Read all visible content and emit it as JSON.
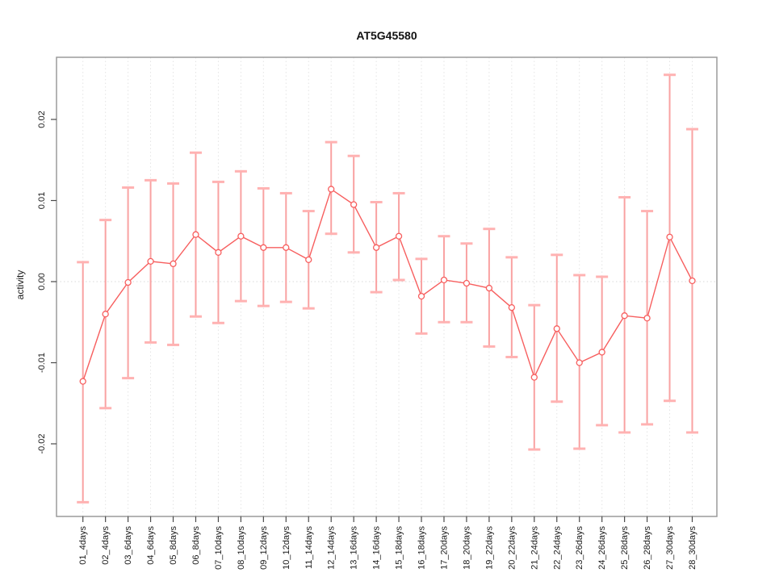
{
  "chart_data": {
    "type": "scatter",
    "title": "AT5G45580",
    "xlabel": "",
    "ylabel": "activity",
    "categories": [
      "01_4days",
      "02_4days",
      "03_6days",
      "04_6days",
      "05_8days",
      "06_8days",
      "07_10days",
      "08_10days",
      "09_12days",
      "10_12days",
      "11_14days",
      "12_14days",
      "13_16days",
      "14_16days",
      "15_18days",
      "16_18days",
      "17_20days",
      "18_20days",
      "19_22days",
      "20_22days",
      "21_24days",
      "22_24days",
      "23_26days",
      "24_26days",
      "25_28days",
      "26_28days",
      "27_30days",
      "28_30days"
    ],
    "series": [
      {
        "name": "activity",
        "values": [
          -0.0123,
          -0.004,
          -0.0001,
          0.0025,
          0.0022,
          0.0058,
          0.0036,
          0.0056,
          0.0042,
          0.0042,
          0.0027,
          0.0114,
          0.0095,
          0.0042,
          0.0056,
          -0.0018,
          0.0002,
          -0.0002,
          -0.0008,
          -0.0032,
          -0.0118,
          -0.0058,
          -0.01,
          -0.0087,
          -0.0042,
          -0.0045,
          0.0055,
          0.0001
        ],
        "err_high": [
          0.0024,
          0.0076,
          0.0116,
          0.0125,
          0.0121,
          0.0159,
          0.0123,
          0.0136,
          0.0115,
          0.0109,
          0.0087,
          0.0172,
          0.0155,
          0.0098,
          0.0109,
          0.0028,
          0.0056,
          0.0047,
          0.0065,
          0.003,
          -0.0029,
          0.0033,
          0.0008,
          0.0006,
          0.0104,
          0.0087,
          0.0255,
          0.0188
        ],
        "err_low": [
          -0.0272,
          -0.0156,
          -0.0119,
          -0.0075,
          -0.0078,
          -0.0043,
          -0.0051,
          -0.0024,
          -0.003,
          -0.0025,
          -0.0033,
          0.0059,
          0.0036,
          -0.0013,
          0.0002,
          -0.0064,
          -0.005,
          -0.005,
          -0.008,
          -0.0093,
          -0.0207,
          -0.0148,
          -0.0206,
          -0.0177,
          -0.0186,
          -0.0176,
          -0.0147,
          -0.0186
        ]
      }
    ],
    "ylim": [
      -0.029,
      0.0277
    ],
    "yticks": [
      -0.02,
      -0.01,
      0,
      0.01,
      0.02
    ],
    "ytick_labels": [
      "-0.02",
      "-0.01",
      "0.00",
      "0.01",
      "0.02"
    ],
    "legend": "none",
    "grid": {
      "vertical": "dotted-per-category",
      "zero_line": "dotted"
    },
    "colors": {
      "errorbar": "#f9a2a2",
      "errorbar_cap": "#ffb2b2",
      "line": "#f75f5f",
      "point_stroke": "#f75f5f",
      "point_fill": "#ffffff",
      "grid": "#e4e4e4",
      "zero_line": "#d9d9d9",
      "border": "#9b9b9b",
      "tick": "#4a4a4a",
      "text": "#1a1a1a"
    }
  }
}
